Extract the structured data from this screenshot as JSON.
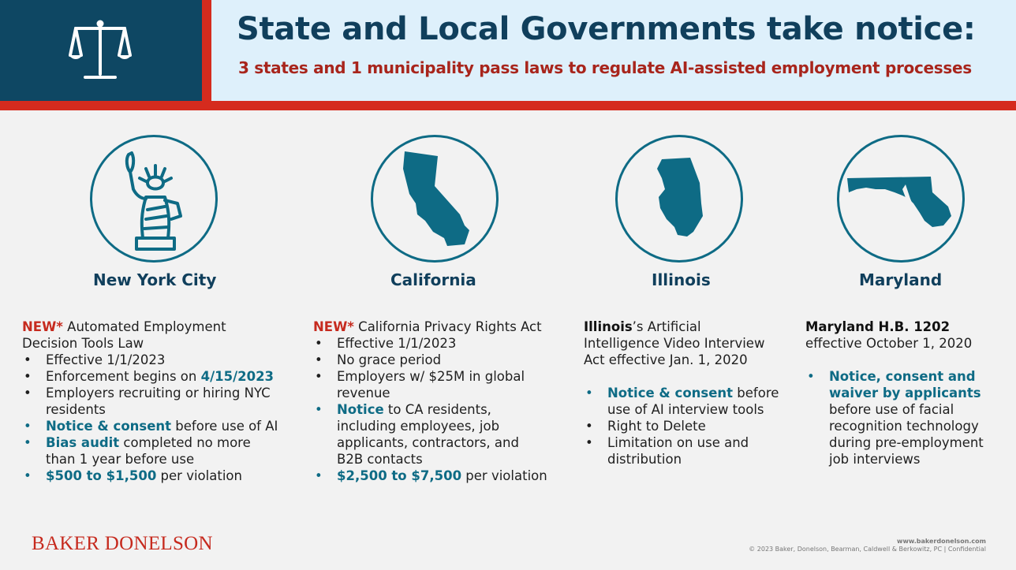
{
  "header": {
    "title": "State and Local Governments take notice:",
    "subtitle": "3 states and 1 municipality pass laws to regulate AI-assisted employment processes",
    "icon": "scales-of-justice-icon"
  },
  "colors": {
    "navy": "#0e4763",
    "red": "#d52b1e",
    "teal": "#0e6b85",
    "light_blue": "#def0fb",
    "dark_red_text": "#a8251c"
  },
  "columns": [
    {
      "name": "New York City",
      "icon": "statue-of-liberty-icon",
      "intro_new": "NEW*",
      "intro_line1": " Automated Employment",
      "intro_line2": "Decision Tools Law",
      "b1": "Effective 1/1/2023",
      "b2_pre": "Enforcement begins on ",
      "b2_hl": "4/15/2023",
      "b3_line1": "Employers recruiting or hiring NYC",
      "b3_line2": "residents",
      "b4_hl": "Notice & consent",
      "b4_rest": " before use of AI",
      "b5_hl": "Bias audit",
      "b5_rest": " completed no more",
      "b5_line2": "than 1 year before use",
      "b6_hl": "$500 to $1,500",
      "b6_rest": " per violation"
    },
    {
      "name": "California",
      "icon": "california-map-icon",
      "intro_new": "NEW*",
      "intro_line1": " California Privacy Rights Act",
      "b1": "Effective 1/1/2023",
      "b2": "No grace period",
      "b3_line1": "Employers w/ $25M in global",
      "b3_line2": "revenue",
      "b4_hl": "Notice",
      "b4_rest": " to CA residents,",
      "b4_line2": "including employees, job",
      "b4_line3": "applicants, contractors, and",
      "b4_line4": "B2B contacts",
      "b5_hl": "$2,500 to $7,500",
      "b5_rest": " per violation"
    },
    {
      "name": "Illinois",
      "icon": "illinois-map-icon",
      "intro_bold": "Illinois",
      "intro_line1": "’s Artificial",
      "intro_line2": "Intelligence Video Interview",
      "intro_line3": "Act effective Jan. 1, 2020",
      "b1_hl": "Notice & consent",
      "b1_rest": " before",
      "b1_line2": "use of AI interview tools",
      "b2": "Right to Delete",
      "b3_line1": "Limitation on use and",
      "b3_line2": "distribution"
    },
    {
      "name": "Maryland",
      "icon": "maryland-map-icon",
      "intro_bold": "Maryland H.B. 1202",
      "intro_line2": "effective October 1, 2020",
      "b1_hl_line1": "Notice, consent and",
      "b1_hl_line2": "waiver by applicants",
      "b1_line3": "before use of facial",
      "b1_line4": "recognition technology",
      "b1_line5": "during pre-employment",
      "b1_line6": "job interviews"
    }
  ],
  "footer": {
    "brand": "BAKER DONELSON",
    "url": "www.bakerdonelson.com",
    "copyright": "© 2023 Baker, Donelson, Bearman, Caldwell & Berkowitz, PC | Confidential"
  }
}
